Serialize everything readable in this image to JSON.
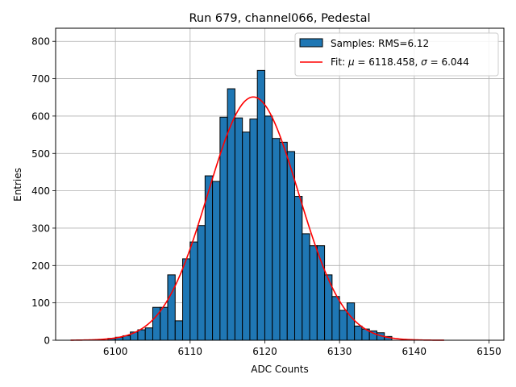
{
  "chart_data": {
    "type": "bar",
    "title": "Run 679, channel066, Pedestal",
    "xlabel": "ADC Counts",
    "ylabel": "Entries",
    "xlim": [
      6092,
      6152
    ],
    "ylim": [
      0,
      835
    ],
    "xticks": [
      6100,
      6110,
      6120,
      6130,
      6140,
      6150
    ],
    "yticks": [
      0,
      100,
      200,
      300,
      400,
      500,
      600,
      700,
      800
    ],
    "grid": true,
    "legend_position": "top-right",
    "histogram": {
      "name": "Samples: RMS=6.12",
      "color": "#1f77b4",
      "bin_edges": [
        6099,
        6100,
        6101,
        6102,
        6103,
        6104,
        6105,
        6106,
        6107,
        6108,
        6109,
        6110,
        6111,
        6112,
        6113,
        6114,
        6115,
        6116,
        6117,
        6118,
        6119,
        6120,
        6121,
        6122,
        6123,
        6124,
        6125,
        6126,
        6127,
        6128,
        6129,
        6130,
        6131,
        6132,
        6133,
        6134,
        6135,
        6136,
        6137
      ],
      "counts": [
        5,
        8,
        12,
        22,
        28,
        33,
        88,
        88,
        175,
        52,
        218,
        263,
        307,
        440,
        425,
        597,
        673,
        595,
        557,
        592,
        722,
        600,
        540,
        530,
        505,
        385,
        285,
        253,
        253,
        175,
        117,
        80,
        100,
        38,
        30,
        25,
        20,
        10
      ]
    },
    "fit": {
      "name_prefix": "Fit: ",
      "mu_symbol": "μ",
      "sigma_symbol": "σ",
      "mu": 6118.458,
      "sigma": 6.044,
      "amplitude": 651,
      "x_range": [
        6094,
        6144
      ],
      "color": "#ff0000"
    }
  }
}
